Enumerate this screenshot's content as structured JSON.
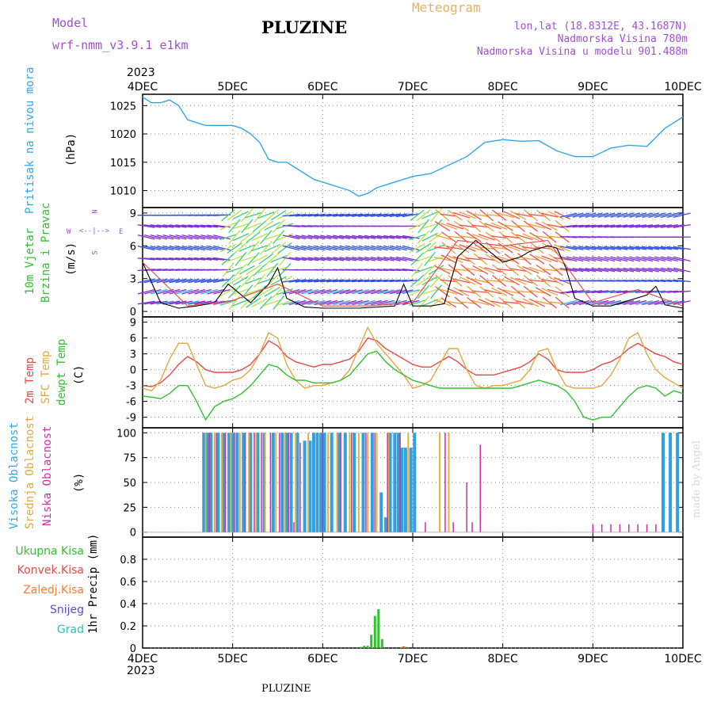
{
  "header": {
    "model_label": "Model",
    "model_name": "wrf-nmm_v3.9.1  e1km",
    "title": "PLUZINE",
    "meteogram_label": "Meteogram",
    "lonlat": "lon,lat (18.8312E, 43.1687N)",
    "altitude": "Nadmorska Visina 780m",
    "model_altitude": "Nadmorska Visina u modelu 901.488m",
    "footer_title": "PLUZINE",
    "credit": "made by Angel"
  },
  "colors": {
    "pressure": "#30a8e8",
    "temp2m": "#e84848",
    "sfctemp": "#e0a840",
    "dewpoint": "#30c030",
    "high_cloud": "#30a0e0",
    "mid_cloud": "#e0b040",
    "low_cloud": "#d030a0",
    "total_precip": "#30c030",
    "conv_precip": "#e84848",
    "frozen_precip": "#f08030",
    "snow": "#5050d0",
    "hail": "#30c0b0",
    "label_purple": "#a050d0"
  },
  "axes": {
    "year": "2023",
    "dates": [
      "4DEC",
      "5DEC",
      "6DEC",
      "7DEC",
      "8DEC",
      "9DEC",
      "10DEC"
    ]
  },
  "panels": {
    "pressure": {
      "label": "Pritisak na nivou mora",
      "unit": "(hPa)"
    },
    "wind": {
      "label1": "10m Vjetar",
      "label2": "Brzina i Pravac",
      "unit": "(m/s)",
      "compass": {
        "n": "N",
        "s": "S",
        "e": "E",
        "w": "W"
      }
    },
    "temp": {
      "label1": "2m Temp",
      "label2": "SFC Temp",
      "label3": "dewpt Temp",
      "unit": "(C)"
    },
    "cloud": {
      "label1": "Visoka Oblacnost",
      "label2": "Srednja Oblacnost",
      "label3": "Niska Oblacnost",
      "unit": "(%)"
    },
    "precip": {
      "labels": [
        "Ukupna Kisa",
        "Konvek.Kisa",
        "Zaledj.Kisa",
        "Snijeg",
        "Grad"
      ],
      "unit": "1hr Precip (mm)"
    }
  },
  "chart_data": [
    {
      "type": "line",
      "panel": "pressure",
      "title": "",
      "xlabel": "",
      "ylabel": "(hPa)",
      "x_unit": "day offset from 4DEC 2023 00h",
      "ylim": [
        1007,
        1027
      ],
      "yticks": [
        1010,
        1015,
        1020,
        1025
      ],
      "grid": true,
      "series": [
        {
          "name": "Pritisak na nivou mora",
          "x": [
            0,
            0.1,
            0.2,
            0.3,
            0.4,
            0.5,
            0.6,
            0.7,
            0.8,
            0.9,
            1.0,
            1.1,
            1.2,
            1.3,
            1.4,
            1.5,
            1.6,
            1.7,
            1.8,
            1.9,
            2.0,
            2.1,
            2.2,
            2.3,
            2.4,
            2.5,
            2.6,
            2.7,
            2.8,
            2.9,
            3.0,
            3.2,
            3.4,
            3.6,
            3.8,
            4.0,
            4.2,
            4.4,
            4.6,
            4.8,
            5.0,
            5.2,
            5.4,
            5.6,
            5.8,
            6.0
          ],
          "values": [
            1026.5,
            1025.5,
            1025.5,
            1026,
            1025,
            1022.5,
            1022,
            1021.5,
            1021.5,
            1021.5,
            1021.5,
            1021,
            1020,
            1018.5,
            1015.5,
            1015,
            1015,
            1014,
            1013,
            1012,
            1011.5,
            1011,
            1010.5,
            1010,
            1009,
            1009.5,
            1010.5,
            1011,
            1011.5,
            1012,
            1012.5,
            1013,
            1014.5,
            1016,
            1018.5,
            1019,
            1018.7,
            1018.8,
            1017,
            1016,
            1016,
            1017.5,
            1018,
            1017.8,
            1021,
            1023
          ]
        }
      ]
    },
    {
      "type": "scatter",
      "panel": "wind",
      "title": "",
      "xlabel": "",
      "ylabel": "(m/s)",
      "ylim": [
        -0.5,
        9.5
      ],
      "yticks": [
        0,
        3,
        6,
        9
      ],
      "grid": true,
      "series": [
        {
          "name": "speed",
          "x": [
            0,
            0.2,
            0.4,
            0.6,
            0.8,
            0.95,
            1.2,
            1.4,
            1.5,
            1.6,
            1.8,
            2.0,
            2.4,
            2.8,
            2.9,
            3.0,
            3.2,
            3.35,
            3.5,
            3.7,
            4.0,
            4.2,
            4.3,
            4.5,
            4.6,
            4.7,
            4.8,
            5.0,
            5.2,
            5.4,
            5.6,
            5.7,
            5.8,
            6.0
          ],
          "values": [
            4.5,
            0.8,
            0.3,
            0.5,
            0.8,
            2.5,
            0.8,
            2.5,
            4,
            1.2,
            0.4,
            0.3,
            0.3,
            0.5,
            2.5,
            0.5,
            0.5,
            0.7,
            5,
            6.5,
            4.5,
            5,
            5.5,
            6,
            5.8,
            4,
            1.2,
            0.5,
            0.5,
            1,
            1.5,
            2.3,
            0.6,
            0.3
          ]
        },
        {
          "name": "gust",
          "x": [
            0,
            0.5,
            1.0,
            1.5,
            2.0,
            2.5,
            3.0,
            3.5,
            4.0,
            4.5,
            5.0,
            5.5,
            6.0
          ],
          "values": [
            4.5,
            0.5,
            1,
            2.5,
            0.5,
            0.5,
            0.8,
            6.5,
            6,
            6.5,
            0.8,
            2,
            0.5
          ]
        }
      ]
    },
    {
      "type": "line",
      "panel": "temp",
      "title": "",
      "xlabel": "",
      "ylabel": "(C)",
      "ylim": [
        -11,
        10
      ],
      "yticks": [
        -9,
        -6,
        -3,
        0,
        3,
        6,
        9
      ],
      "grid": true,
      "x": [
        0,
        0.1,
        0.2,
        0.3,
        0.4,
        0.5,
        0.6,
        0.7,
        0.8,
        0.9,
        1.0,
        1.1,
        1.2,
        1.3,
        1.4,
        1.5,
        1.6,
        1.7,
        1.8,
        1.9,
        2.0,
        2.1,
        2.2,
        2.3,
        2.4,
        2.5,
        2.6,
        2.7,
        2.8,
        2.9,
        3.0,
        3.1,
        3.2,
        3.3,
        3.4,
        3.5,
        3.6,
        3.7,
        3.8,
        3.9,
        4.0,
        4.1,
        4.2,
        4.3,
        4.4,
        4.5,
        4.6,
        4.7,
        4.8,
        4.9,
        5.0,
        5.1,
        5.2,
        5.3,
        5.4,
        5.5,
        5.6,
        5.7,
        5.8,
        5.9,
        6.0
      ],
      "series": [
        {
          "name": "2m Temp",
          "values": [
            -3,
            -3.2,
            -2.5,
            -1,
            1,
            2.5,
            1.5,
            0,
            -0.5,
            -0.5,
            -0.5,
            0,
            1,
            3,
            5.5,
            4.5,
            2.5,
            1.5,
            1,
            0.5,
            1,
            1,
            1.5,
            2,
            3.5,
            6,
            5.5,
            4,
            3,
            2,
            1,
            0.5,
            0.5,
            1.5,
            2.5,
            1.5,
            0,
            -1,
            -1,
            -1,
            -0.5,
            0,
            0.5,
            1.5,
            3,
            2,
            0,
            -0.5,
            -0.5,
            -0.5,
            0,
            1,
            1.5,
            2.5,
            4,
            5,
            4,
            3,
            2.5,
            1.5,
            1
          ]
        },
        {
          "name": "SFC Temp",
          "values": [
            -3.5,
            -4,
            -2,
            2,
            5,
            5,
            1,
            -3,
            -3.5,
            -3,
            -2,
            -1.5,
            0,
            3,
            7,
            6,
            1,
            -2,
            -3.5,
            -3,
            -3,
            -2.5,
            -2,
            0,
            4,
            8,
            5,
            3,
            1,
            -1,
            -3.5,
            -3,
            -2,
            1,
            4,
            4,
            0,
            -3,
            -3.5,
            -3,
            -3,
            -2.5,
            -2,
            0,
            3.5,
            4,
            0,
            -3,
            -3.5,
            -3.5,
            -3.5,
            -3,
            -1,
            2,
            6,
            7,
            3,
            0,
            -1.5,
            -2.5,
            -3.5
          ]
        },
        {
          "name": "dewpt Temp",
          "values": [
            -5,
            -5.2,
            -5.5,
            -4.5,
            -3,
            -3,
            -6,
            -9.5,
            -7,
            -6,
            -5.5,
            -4.5,
            -3,
            -1,
            1,
            0.5,
            -1,
            -2,
            -2,
            -2.5,
            -2.5,
            -2.5,
            -2,
            -1,
            1,
            3,
            3.5,
            1.5,
            0,
            -1,
            -2,
            -2.5,
            -3,
            -3.5,
            -3.5,
            -3.5,
            -3.5,
            -3.5,
            -3.5,
            -3.5,
            -3.5,
            -3.5,
            -3,
            -2.5,
            -2,
            -2.5,
            -3,
            -4,
            -6,
            -9,
            -9.5,
            -9,
            -9,
            -7,
            -5,
            -3.5,
            -3,
            -3.5,
            -5,
            -4,
            -4.5
          ]
        }
      ]
    },
    {
      "type": "bar",
      "panel": "cloud",
      "title": "",
      "xlabel": "",
      "ylabel": "(%)",
      "ylim": [
        -5,
        105
      ],
      "yticks": [
        0,
        25,
        50,
        75,
        100
      ],
      "grid": true,
      "series": [
        {
          "name": "Visoka Oblacnost",
          "x": [
            0.68,
            0.72,
            0.76,
            0.84,
            0.9,
            0.96,
            1.0,
            1.05,
            1.12,
            1.2,
            1.28,
            1.35,
            1.45,
            1.55,
            1.6,
            1.65,
            1.72,
            1.8,
            1.86,
            1.9,
            1.94,
            1.98,
            2.02,
            2.1,
            2.18,
            2.25,
            2.35,
            2.45,
            2.55,
            2.65,
            2.7,
            2.75,
            2.8,
            2.84,
            2.88,
            2.92,
            2.98,
            3.02,
            5.78,
            5.86,
            5.94
          ],
          "values": [
            100,
            100,
            100,
            100,
            100,
            100,
            100,
            100,
            100,
            100,
            100,
            100,
            100,
            100,
            100,
            100,
            100,
            92,
            92,
            100,
            100,
            100,
            100,
            100,
            100,
            100,
            100,
            100,
            100,
            40,
            15,
            100,
            100,
            100,
            85,
            85,
            85,
            100,
            100,
            100,
            100
          ]
        },
        {
          "name": "Srednja Oblacnost",
          "x": [
            0.7,
            0.8,
            0.88,
            0.98,
            1.08,
            1.18,
            1.26,
            1.36,
            1.48,
            1.58,
            1.7,
            1.84,
            2.06,
            2.16,
            2.3,
            2.4,
            2.5,
            2.6,
            2.73,
            2.95,
            3.3,
            3.4
          ],
          "values": [
            100,
            100,
            100,
            100,
            100,
            100,
            100,
            100,
            100,
            100,
            100,
            100,
            100,
            100,
            100,
            100,
            100,
            100,
            100,
            100,
            100,
            100
          ]
        },
        {
          "name": "Niska Oblacnost",
          "x": [
            0.74,
            0.82,
            0.92,
            1.02,
            1.14,
            1.24,
            1.32,
            1.42,
            1.52,
            1.62,
            1.68,
            1.75,
            2.0,
            2.2,
            2.32,
            2.48,
            2.58,
            2.72,
            2.86,
            3.14,
            3.36,
            3.45,
            3.6,
            3.66,
            3.75,
            5.0,
            5.1,
            5.2,
            5.3,
            5.4,
            5.5,
            5.6,
            5.7
          ],
          "values": [
            100,
            100,
            100,
            100,
            100,
            100,
            100,
            100,
            100,
            100,
            10,
            90,
            100,
            100,
            100,
            100,
            100,
            100,
            100,
            10,
            100,
            10,
            50,
            10,
            88,
            8,
            8,
            8,
            8,
            8,
            8,
            8,
            8
          ]
        }
      ]
    },
    {
      "type": "bar",
      "panel": "precip",
      "title": "",
      "xlabel": "",
      "ylabel": "1hr Precip (mm)",
      "ylim": [
        0,
        1.0
      ],
      "yticks": [
        0,
        0.2,
        0.4,
        0.6,
        0.8
      ],
      "grid": true,
      "series": [
        {
          "name": "Ukupna Kisa",
          "x": [
            2.42,
            2.46,
            2.5,
            2.54,
            2.58,
            2.62,
            2.66,
            2.88,
            2.92
          ],
          "values": [
            0.01,
            0.02,
            0.02,
            0.12,
            0.29,
            0.35,
            0.08,
            0.01,
            0.01
          ]
        },
        {
          "name": "Konvek.Kisa",
          "x": [
            2.9
          ],
          "values": [
            0.015
          ]
        }
      ]
    }
  ]
}
